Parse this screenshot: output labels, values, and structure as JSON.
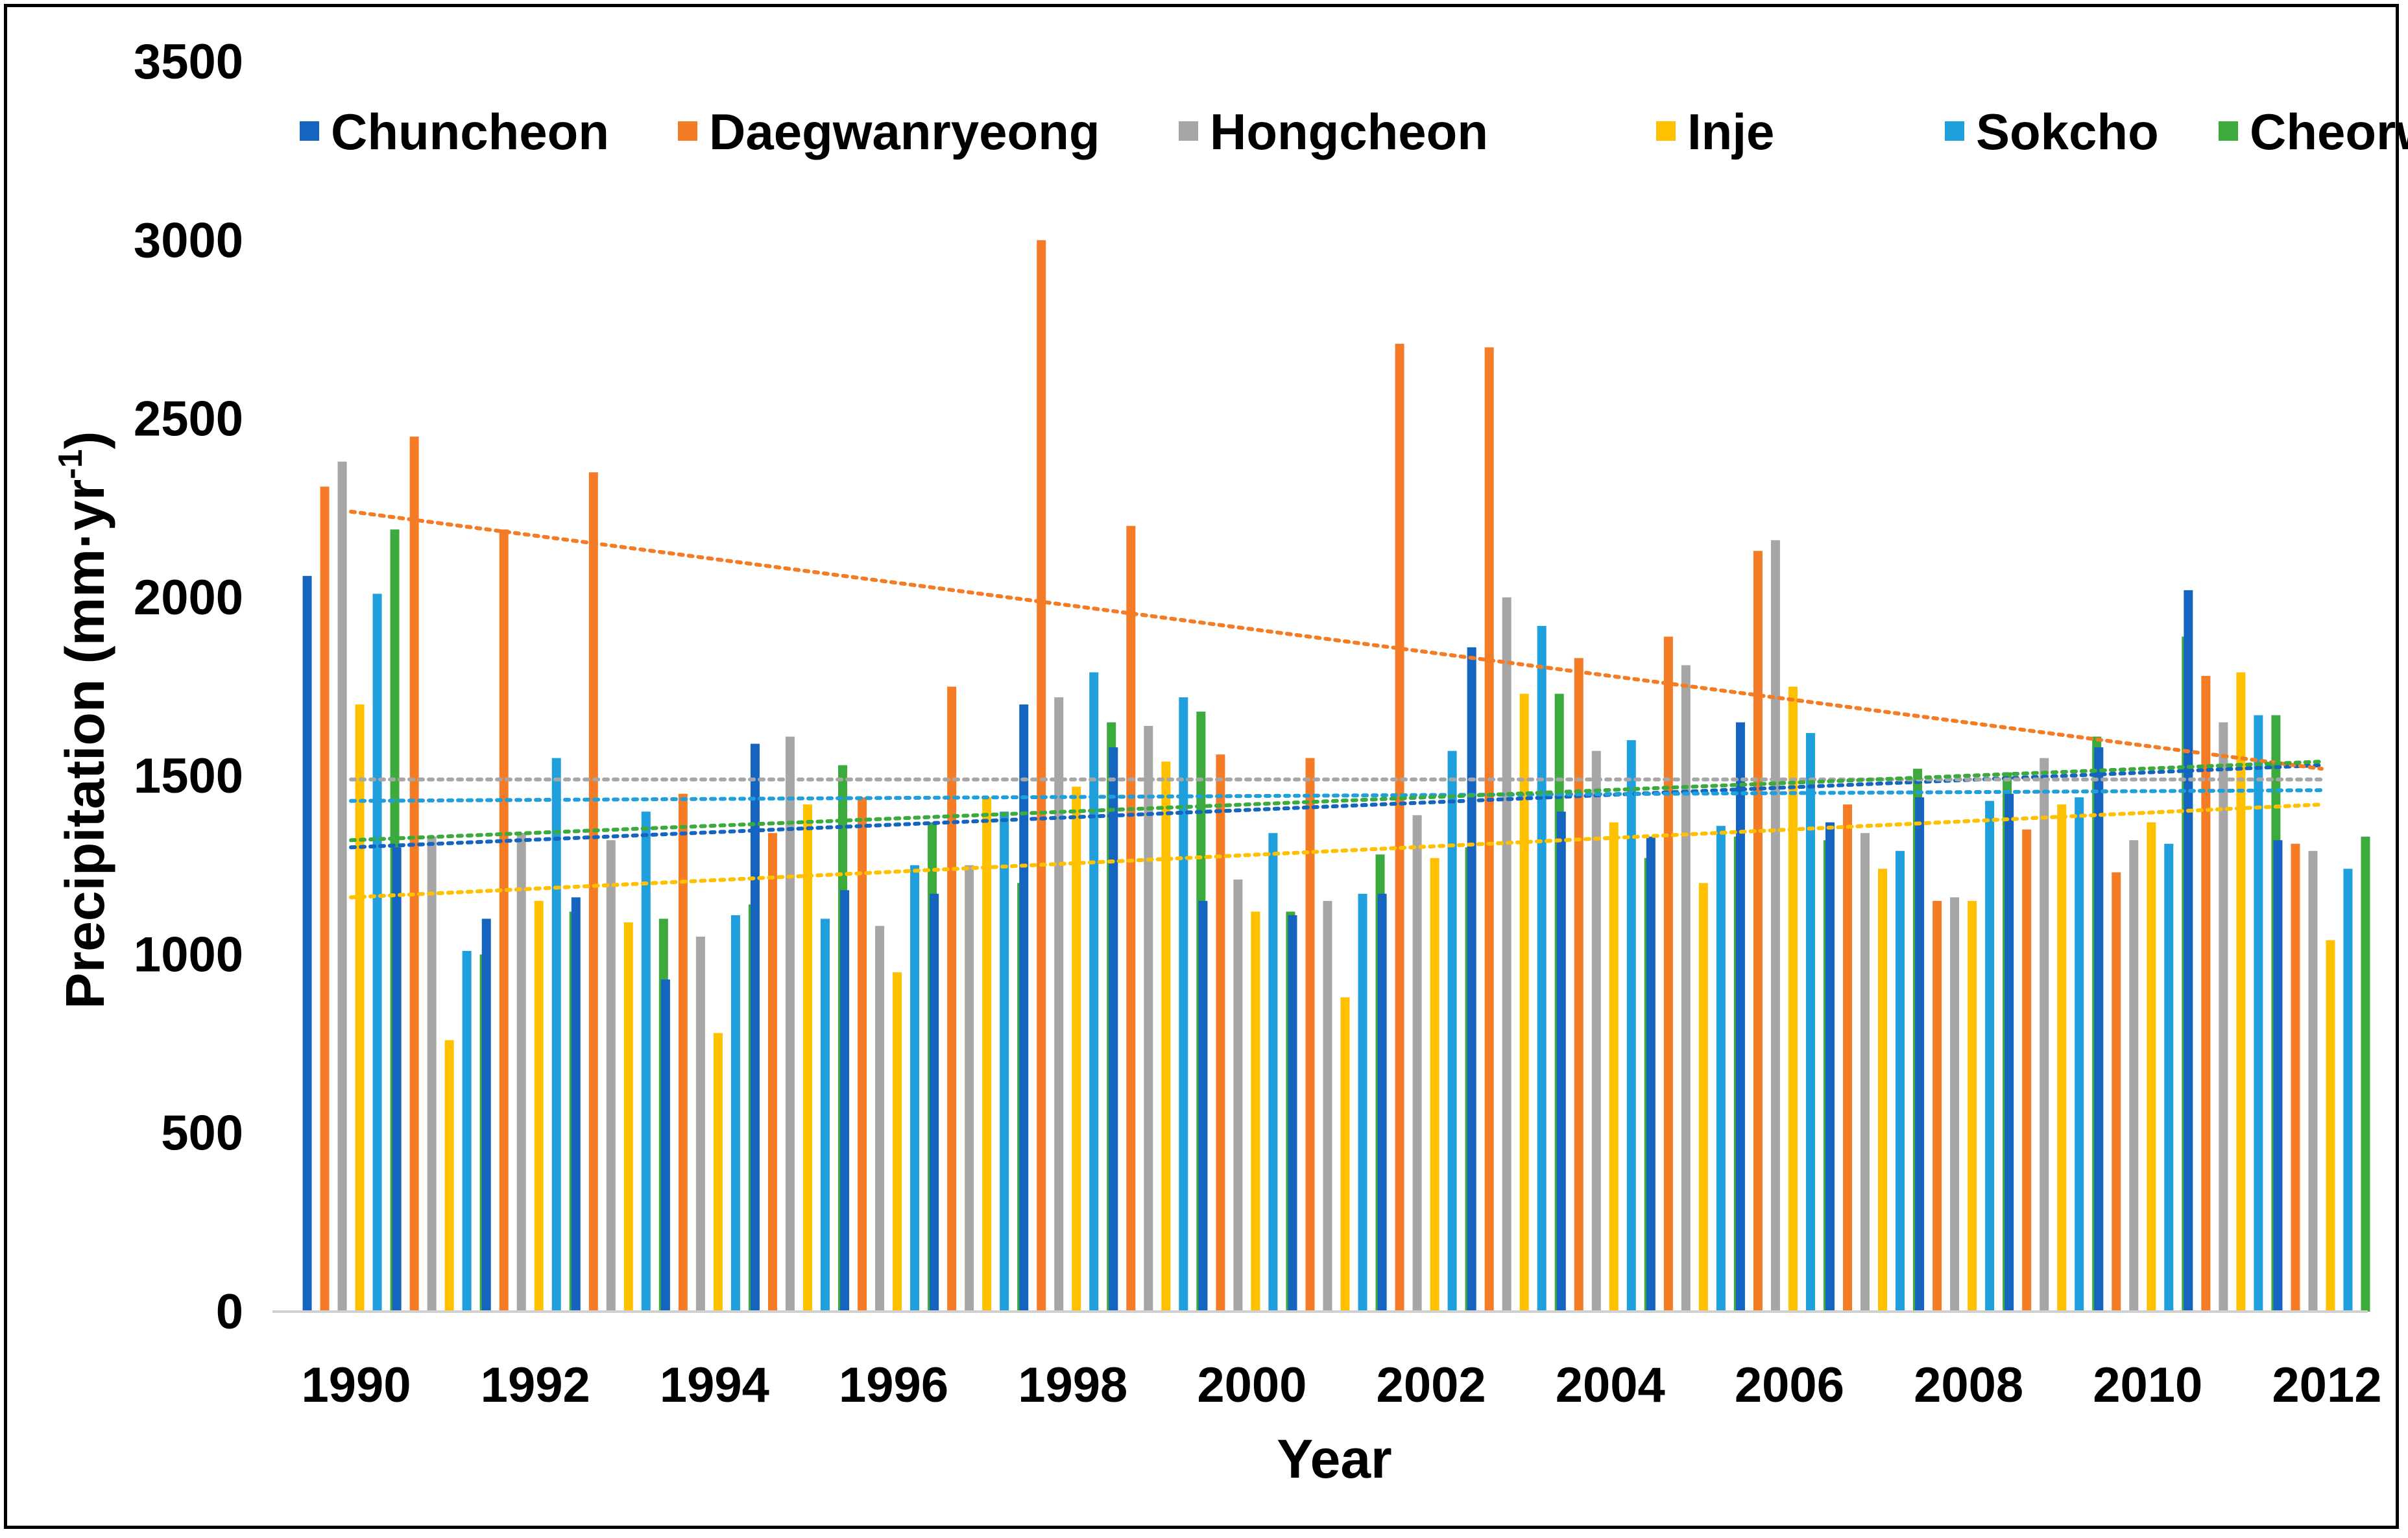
{
  "chart_data": {
    "type": "bar",
    "title": "",
    "xlabel": "Year",
    "ylabel": "Precipitation (mm·yr",
    "ylabel_superscript": "-1",
    "ylabel_suffix": ")",
    "ylim": [
      0,
      3500
    ],
    "yticks": [
      "0",
      "500",
      "1000",
      "1500",
      "2000",
      "2500",
      "3000",
      "3500"
    ],
    "categories": [
      1990,
      1991,
      1992,
      1993,
      1994,
      1995,
      1996,
      1997,
      1998,
      1999,
      2000,
      2001,
      2002,
      2003,
      2004,
      2005,
      2006,
      2007,
      2008,
      2009,
      2010,
      2011,
      2012
    ],
    "xtick_labels": [
      "1990",
      "1992",
      "1994",
      "1996",
      "1998",
      "2000",
      "2002",
      "2004",
      "2006",
      "2008",
      "2010",
      "2012"
    ],
    "legend_position": "top",
    "series": [
      {
        "name": "Chuncheon",
        "color": "#1565C0",
        "values": [
          2060,
          1300,
          1100,
          1160,
          930,
          1590,
          1180,
          1170,
          1700,
          1580,
          1150,
          1110,
          1170,
          1860,
          1400,
          1330,
          1650,
          1370,
          1440,
          1450,
          1580,
          2020,
          1320
        ],
        "trend": [
          1300,
          1530
        ]
      },
      {
        "name": "Daegwanryeong",
        "color": "#F57C26",
        "values": [
          2310,
          2450,
          2190,
          2350,
          1450,
          1340,
          1440,
          1750,
          3000,
          2200,
          1560,
          1550,
          2710,
          2700,
          1830,
          1890,
          2130,
          1420,
          1150,
          1350,
          1230,
          1780,
          1310
        ],
        "trend": [
          2240,
          1520
        ]
      },
      {
        "name": "Hongcheon",
        "color": "#A6A6A6",
        "values": [
          2380,
          1330,
          1340,
          1320,
          1050,
          1610,
          1080,
          1250,
          1720,
          1640,
          1210,
          1150,
          1390,
          2000,
          1570,
          1810,
          2160,
          1340,
          1160,
          1550,
          1320,
          1650,
          1290
        ],
        "trend": [
          1490,
          1490
        ]
      },
      {
        "name": "Inje",
        "color": "#FFC000",
        "values": [
          1700,
          760,
          1150,
          1090,
          780,
          1420,
          950,
          1440,
          1470,
          1540,
          1120,
          880,
          1270,
          1730,
          1370,
          1200,
          1750,
          1240,
          1150,
          1420,
          1370,
          1790,
          1040
        ],
        "trend": [
          1160,
          1420
        ]
      },
      {
        "name": "Sokcho",
        "color": "#1F9FDB",
        "values": [
          2010,
          1010,
          1550,
          1400,
          1110,
          1100,
          1250,
          1400,
          1790,
          1720,
          1340,
          1170,
          1570,
          1920,
          1600,
          1360,
          1620,
          1290,
          1430,
          1440,
          1310,
          1670,
          1240
        ],
        "trend": [
          1430,
          1460
        ]
      },
      {
        "name": "Cheorwon",
        "color": "#3DAA3D",
        "values": [
          2190,
          1000,
          1120,
          1100,
          1140,
          1530,
          1370,
          1200,
          1650,
          1680,
          1120,
          1280,
          1300,
          1730,
          1270,
          1330,
          1320,
          1520,
          1510,
          1610,
          1890,
          1670,
          1330
        ],
        "trend": [
          1320,
          1540
        ]
      }
    ]
  }
}
